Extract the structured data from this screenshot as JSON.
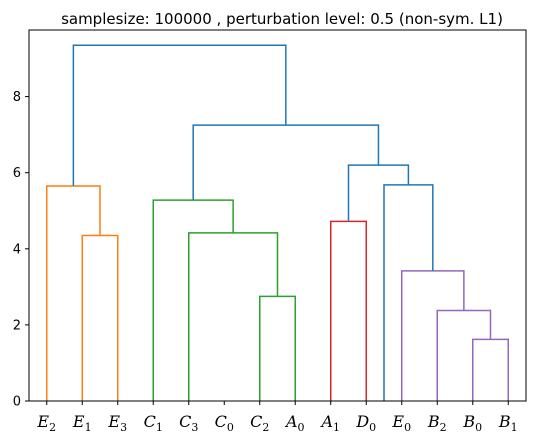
{
  "chart_data": {
    "type": "dendrogram",
    "title": "samplesize: 100000 , perturbation level: 0.5 (non-sym. L1)",
    "xlabel": "",
    "ylabel": "",
    "ylim": [
      0,
      9.75
    ],
    "yticks": [
      0,
      2,
      4,
      6,
      8
    ],
    "grid": false,
    "leaves": [
      {
        "base": "E",
        "sub": "2"
      },
      {
        "base": "E",
        "sub": "1"
      },
      {
        "base": "E",
        "sub": "3"
      },
      {
        "base": "C",
        "sub": "1"
      },
      {
        "base": "C",
        "sub": "3"
      },
      {
        "base": "C",
        "sub": "0"
      },
      {
        "base": "C",
        "sub": "2"
      },
      {
        "base": "A",
        "sub": "0"
      },
      {
        "base": "A",
        "sub": "1"
      },
      {
        "base": "D",
        "sub": "0"
      },
      {
        "base": "E",
        "sub": "0"
      },
      {
        "base": "B",
        "sub": "2"
      },
      {
        "base": "B",
        "sub": "0"
      },
      {
        "base": "B",
        "sub": "1"
      }
    ],
    "colors": {
      "orange": "#ff7f0e",
      "green": "#2ca02c",
      "red": "#d62728",
      "purple": "#9467bd",
      "blue": "#1f77b4"
    },
    "links": [
      {
        "left": 1,
        "right": 2,
        "height": 4.35,
        "color": "orange"
      },
      {
        "left": 0,
        "right": 14,
        "height": 5.65,
        "color": "orange"
      },
      {
        "left": 6,
        "right": 7,
        "height": 2.75,
        "color": "green"
      },
      {
        "left": 4,
        "right": 16,
        "height": 4.42,
        "color": "green"
      },
      {
        "left": 3,
        "right": 17,
        "height": 5.28,
        "color": "green"
      },
      {
        "left": 8,
        "right": 9,
        "height": 4.72,
        "color": "red"
      },
      {
        "left": 12,
        "right": 13,
        "height": 1.62,
        "color": "purple"
      },
      {
        "left": 11,
        "right": 20,
        "height": 2.38,
        "color": "purple"
      },
      {
        "left": 10,
        "right": 21,
        "height": 3.42,
        "color": "purple"
      },
      {
        "left": 9.5,
        "right": 22,
        "height": 5.68,
        "color": "blue"
      },
      {
        "left": 19,
        "right": 23,
        "height": 6.2,
        "color": "blue"
      },
      {
        "left": 18,
        "right": 24,
        "height": 7.25,
        "color": "blue"
      },
      {
        "left": 15,
        "right": 25,
        "height": 9.35,
        "color": "blue"
      }
    ]
  }
}
